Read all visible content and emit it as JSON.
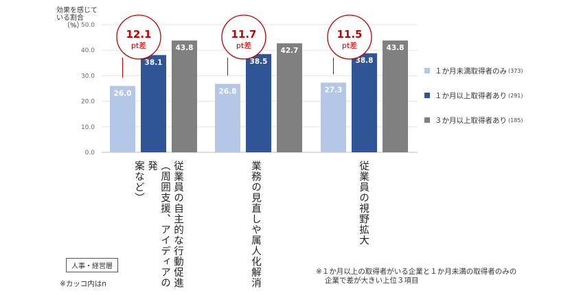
{
  "y_axis_label": [
    "効果を感じて",
    "いる割合",
    "（%）"
  ],
  "chart_data": {
    "type": "bar",
    "categories": [
      "従業員の自主的な行動促進\n（周囲支援、アイディアの発\n案など）",
      "業務の見直しや属人化解消",
      "従業員の視野拡大"
    ],
    "series": [
      {
        "name": "１か月未満取得者のみ",
        "count": "(373)",
        "color": "#b4c7e7",
        "values": [
          26.0,
          26.8,
          27.3
        ]
      },
      {
        "name": "１か月以上取得者あり",
        "count": "(291)",
        "color": "#2f5597",
        "values": [
          38.1,
          38.5,
          38.8
        ]
      },
      {
        "name": "３か月以上取得者あり",
        "count": "(185)",
        "color": "#808080",
        "values": [
          43.8,
          42.7,
          43.8
        ]
      }
    ],
    "yticks": [
      "0.0",
      "10.0",
      "20.0",
      "30.0",
      "40.0",
      "50.0"
    ],
    "ylim": [
      0,
      50
    ],
    "grid": true,
    "legend_position": "right",
    "annotations": [
      {
        "value": "12.1",
        "unit": "pt差"
      },
      {
        "value": "11.7",
        "unit": "pt差"
      },
      {
        "value": "11.5",
        "unit": "pt差"
      }
    ],
    "annotation_color": "#c00000"
  },
  "badge": "人事・経営層",
  "note": "※カッコ内はn",
  "footnote": [
    "※１か月以上の取得者がいる企業と１か月未満の取得者のみの",
    "企業で差が大きい上位３項目"
  ]
}
